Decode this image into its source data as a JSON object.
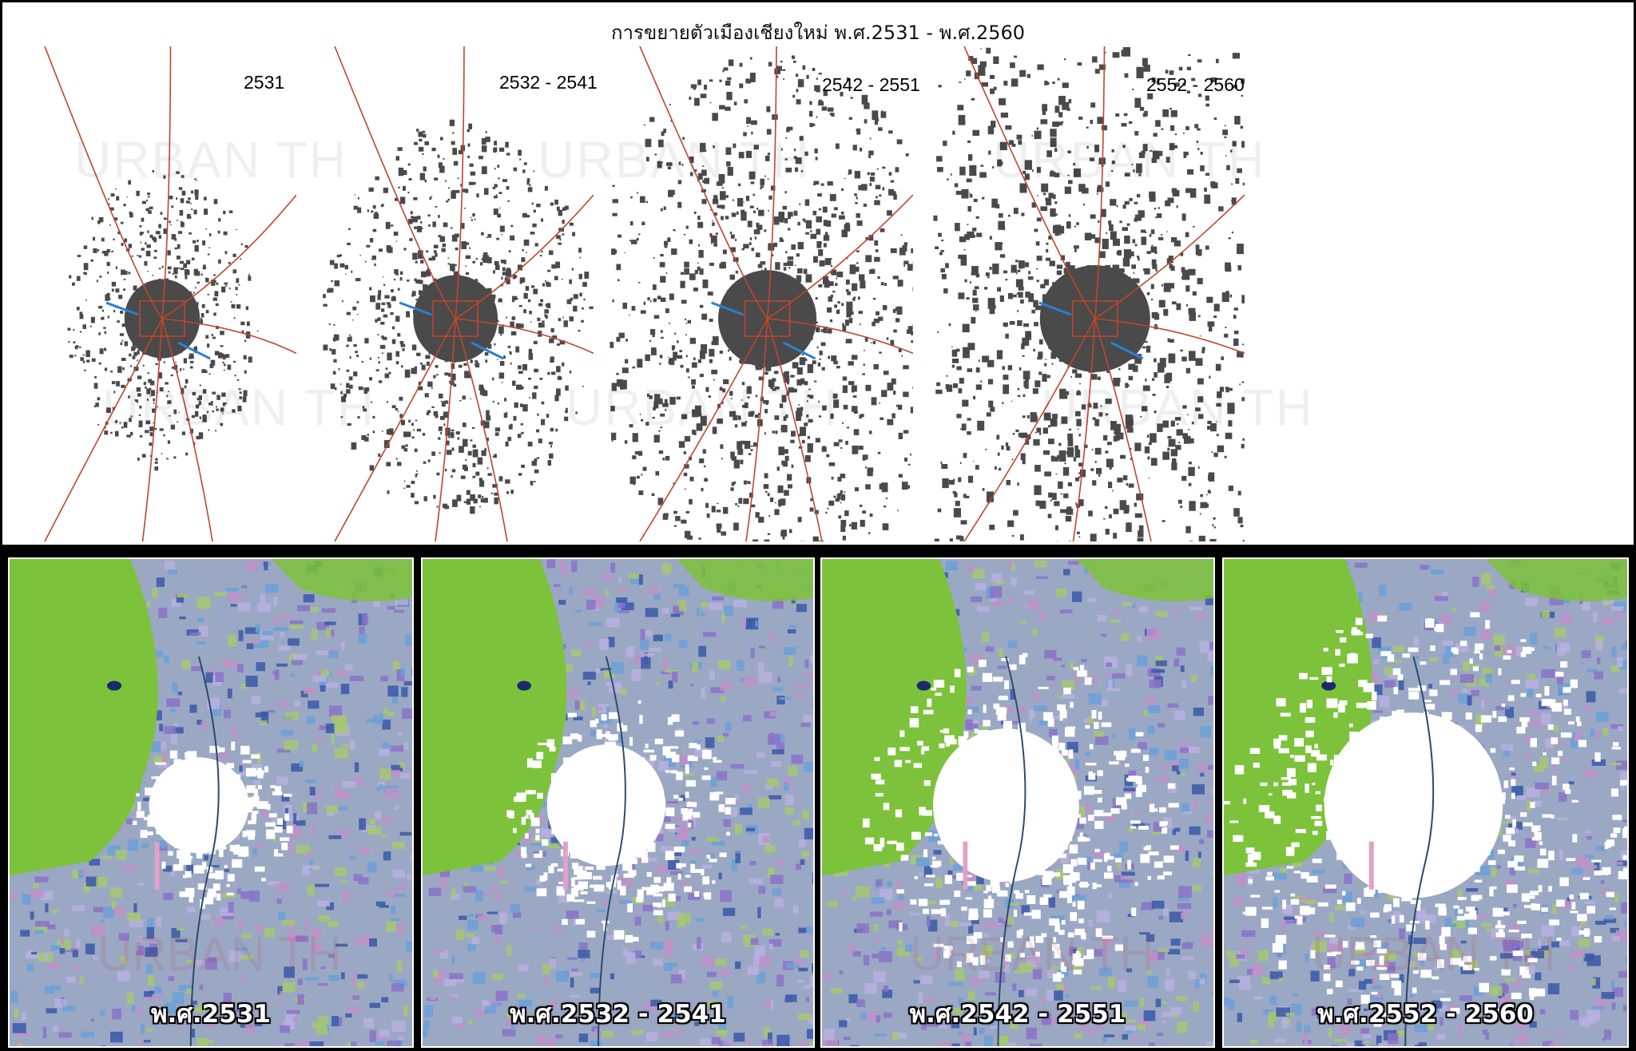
{
  "title": "การขยายตัวเมืองเชียงใหม่ พ.ศ.2531 - พ.ศ.2560",
  "watermark": "URBAN TH",
  "map_panels": [
    {
      "period": "2531",
      "density": 0.25
    },
    {
      "period": "2532 - 2541",
      "density": 0.45
    },
    {
      "period": "2542 - 2551",
      "density": 0.7
    },
    {
      "period": "2552 - 2560",
      "density": 0.95
    }
  ],
  "satellite_panels": [
    {
      "label": "พ.ศ.2531",
      "density": 0.25
    },
    {
      "label": "พ.ศ.2532 - 2541",
      "density": 0.45
    },
    {
      "label": "พ.ศ.2542 - 2551",
      "density": 0.7
    },
    {
      "label": "พ.ศ.2552 - 2560",
      "density": 0.95
    }
  ],
  "colors": {
    "urban": "#4a4a4a",
    "road": "#c0462a",
    "river": "#2a7fd4",
    "forest": "#7cc23a",
    "farmland": "#8a72c8",
    "water": "#1a2a6a",
    "built_up": "#ffffff"
  }
}
